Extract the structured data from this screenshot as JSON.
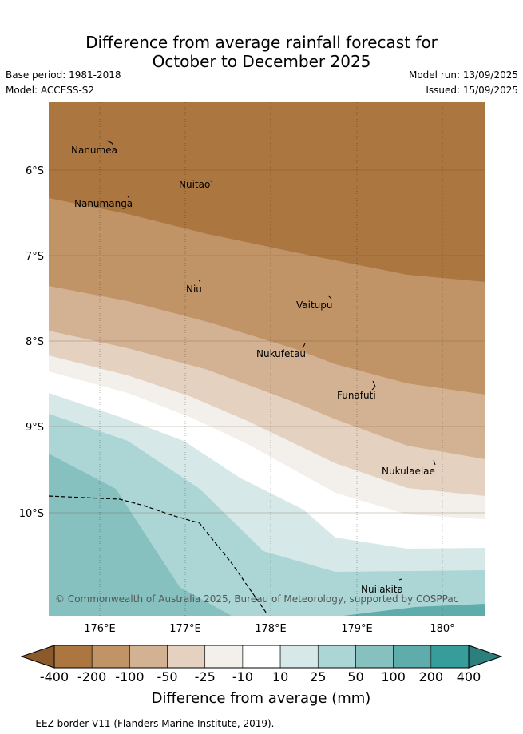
{
  "title_line1": "Difference from average rainfall forecast for",
  "title_line2": "October to December 2025",
  "base_period": "Base period: 1981-2018",
  "model": "Model: ACCESS-S2",
  "model_run": "Model run: 13/09/2025",
  "issued": "Issued: 15/09/2025",
  "map": {
    "lat_ticks": [
      "6°S",
      "7°S",
      "8°S",
      "9°S",
      "10°S"
    ],
    "lon_ticks": [
      "176°E",
      "177°E",
      "178°E",
      "179°E",
      "180°"
    ],
    "places": [
      "Nanumea",
      "Nuitao",
      "Nanumanga",
      "Niu",
      "Vaitupu",
      "Nukufetau",
      "Funafuti",
      "Nukulaelae",
      "Nuilakita"
    ],
    "copyright": "© Commonwealth of Australia 2025, Bureau of Meteorology, supported by COSPPac"
  },
  "legend": {
    "title": "Difference from average (mm)",
    "labels": [
      "-400",
      "-200",
      "-100",
      "-50",
      "-25",
      "-10",
      "10",
      "25",
      "50",
      "100",
      "200",
      "400"
    ],
    "colors": [
      "#ab7640",
      "#c09467",
      "#d3b293",
      "#e4d1c0",
      "#f3efea",
      "#ffffff",
      "#d6e8e8",
      "#acd6d5",
      "#86c1bf",
      "#5eacab",
      "#379d9b"
    ],
    "extend_low_color": "#8b5a2b",
    "extend_high_color": "#2b7f7c"
  },
  "footer": "-- -- -- EEZ border V11 (Flanders Marine Institute, 2019)."
}
